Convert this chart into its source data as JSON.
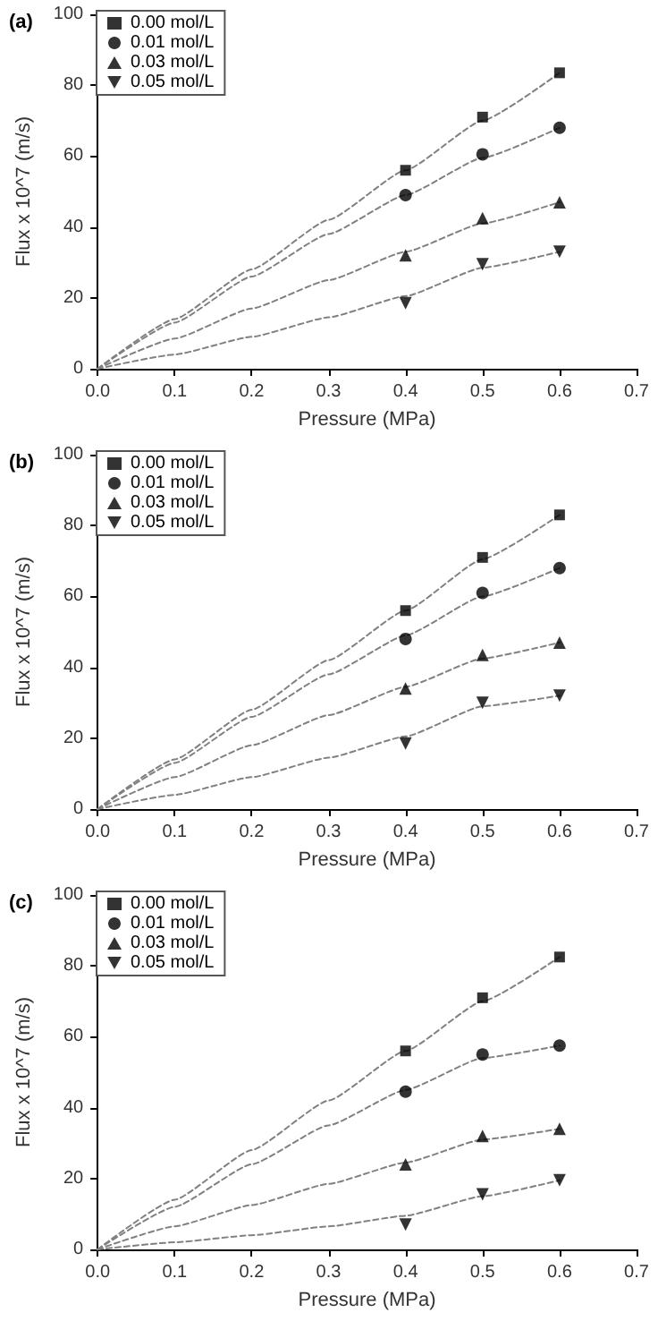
{
  "chart_data": [
    {
      "type": "scatter",
      "title": "(a)",
      "xlabel": "Pressure (MPa)",
      "ylabel": "Flux x 10^7 (m/s)",
      "xlim": [
        0,
        0.7
      ],
      "ylim": [
        0,
        100
      ],
      "xticks": [
        {
          "value": 0,
          "label": "0.0"
        },
        {
          "value": 0.1,
          "label": "0.1"
        },
        {
          "value": 0.2,
          "label": "0.2"
        },
        {
          "value": 0.3,
          "label": "0.3"
        },
        {
          "value": 0.4,
          "label": "0.4"
        },
        {
          "value": 0.5,
          "label": "0.5"
        },
        {
          "value": 0.6,
          "label": "0.6"
        },
        {
          "value": 0.7,
          "label": "0.7"
        }
      ],
      "yticks": [
        0,
        20,
        40,
        60,
        80,
        100
      ],
      "legend": "top left",
      "grid": false,
      "series": [
        {
          "name": "0.00 mol/L",
          "marker": "square",
          "color": "#000000",
          "x": [
            0.4,
            0.5,
            0.6
          ],
          "values": [
            56,
            71,
            83.5
          ]
        },
        {
          "name": "0.01 mol/L",
          "marker": "circle",
          "color": "#000000",
          "x": [
            0.4,
            0.5,
            0.6
          ],
          "values": [
            49,
            60.5,
            68
          ]
        },
        {
          "name": "0.03 mol/L",
          "marker": "triangle",
          "color": "#000000",
          "x": [
            0.4,
            0.5,
            0.6
          ],
          "values": [
            32,
            42.5,
            47
          ]
        },
        {
          "name": "0.05 mol/L",
          "marker": "triangle-down",
          "color": "#000000",
          "x": [
            0.4,
            0.5,
            0.6
          ],
          "values": [
            18.5,
            29.5,
            33
          ]
        },
        {
          "type": "line",
          "line_style": "dashed",
          "marker": "none",
          "color": "#808080",
          "x": [
            0,
            0.1,
            0.2,
            0.3,
            0.4,
            0.5,
            0.6
          ],
          "values": [
            0,
            14,
            28,
            42,
            56,
            70,
            83.5
          ]
        },
        {
          "type": "line",
          "line_style": "dashed",
          "marker": "none",
          "color": "#808080",
          "x": [
            0,
            0.1,
            0.2,
            0.3,
            0.4,
            0.5,
            0.6
          ],
          "values": [
            0,
            13,
            26,
            38,
            49,
            59.5,
            68
          ]
        },
        {
          "type": "line",
          "line_style": "dashed",
          "marker": "none",
          "color": "#808080",
          "x": [
            0,
            0.1,
            0.2,
            0.3,
            0.4,
            0.5,
            0.6
          ],
          "values": [
            0,
            8.5,
            17,
            25,
            33,
            41,
            47
          ]
        },
        {
          "type": "line",
          "line_style": "dashed",
          "marker": "none",
          "color": "#808080",
          "x": [
            0,
            0.1,
            0.2,
            0.3,
            0.4,
            0.5,
            0.6
          ],
          "values": [
            0,
            4,
            9,
            14.5,
            20.5,
            28.5,
            33
          ]
        }
      ]
    },
    {
      "type": "scatter",
      "title": "(b)",
      "xlabel": "Pressure (MPa)",
      "ylabel": "Flux x 10^7 (m/s)",
      "xlim": [
        0,
        0.7
      ],
      "ylim": [
        0,
        100
      ],
      "xticks": [
        {
          "value": 0,
          "label": "0.0"
        },
        {
          "value": 0.1,
          "label": "0.1"
        },
        {
          "value": 0.2,
          "label": "0.2"
        },
        {
          "value": 0.3,
          "label": "0.3"
        },
        {
          "value": 0.4,
          "label": "0.4"
        },
        {
          "value": 0.5,
          "label": "0.5"
        },
        {
          "value": 0.6,
          "label": "0.6"
        },
        {
          "value": 0.7,
          "label": "0.7"
        }
      ],
      "yticks": [
        0,
        20,
        40,
        60,
        80,
        100
      ],
      "legend": "top left",
      "grid": false,
      "series": [
        {
          "name": "0.00 mol/L",
          "marker": "square",
          "color": "#000000",
          "x": [
            0.4,
            0.5,
            0.6
          ],
          "values": [
            56,
            71,
            83
          ]
        },
        {
          "name": "0.01 mol/L",
          "marker": "circle",
          "color": "#000000",
          "x": [
            0.4,
            0.5,
            0.6
          ],
          "values": [
            48,
            61,
            68
          ]
        },
        {
          "name": "0.03 mol/L",
          "marker": "triangle",
          "color": "#000000",
          "x": [
            0.4,
            0.5,
            0.6
          ],
          "values": [
            34,
            43.5,
            47
          ]
        },
        {
          "name": "0.05 mol/L",
          "marker": "triangle-down",
          "color": "#000000",
          "x": [
            0.4,
            0.5,
            0.6
          ],
          "values": [
            18.5,
            30,
            32
          ]
        },
        {
          "type": "line",
          "line_style": "dashed",
          "marker": "none",
          "color": "#808080",
          "x": [
            0,
            0.1,
            0.2,
            0.3,
            0.4,
            0.5,
            0.6
          ],
          "values": [
            0,
            14,
            28,
            42,
            56,
            70.5,
            83
          ]
        },
        {
          "type": "line",
          "line_style": "dashed",
          "marker": "none",
          "color": "#808080",
          "x": [
            0,
            0.1,
            0.2,
            0.3,
            0.4,
            0.5,
            0.6
          ],
          "values": [
            0,
            13,
            26,
            38,
            49,
            60,
            68
          ]
        },
        {
          "type": "line",
          "line_style": "dashed",
          "marker": "none",
          "color": "#808080",
          "x": [
            0,
            0.1,
            0.2,
            0.3,
            0.4,
            0.5,
            0.6
          ],
          "values": [
            0,
            9,
            18,
            26.5,
            34.5,
            42.5,
            47
          ]
        },
        {
          "type": "line",
          "line_style": "dashed",
          "marker": "none",
          "color": "#808080",
          "x": [
            0,
            0.1,
            0.2,
            0.3,
            0.4,
            0.5,
            0.6
          ],
          "values": [
            0,
            4,
            9,
            14.5,
            20.5,
            29,
            32
          ]
        }
      ]
    },
    {
      "type": "scatter",
      "title": "(c)",
      "xlabel": "Pressure (MPa)",
      "ylabel": "Flux x 10^7 (m/s)",
      "xlim": [
        0,
        0.7
      ],
      "ylim": [
        0,
        100
      ],
      "xticks": [
        {
          "value": 0,
          "label": "0.0"
        },
        {
          "value": 0.1,
          "label": "0.1"
        },
        {
          "value": 0.2,
          "label": "0.2"
        },
        {
          "value": 0.3,
          "label": "0.3"
        },
        {
          "value": 0.4,
          "label": "0.4"
        },
        {
          "value": 0.5,
          "label": "0.5"
        },
        {
          "value": 0.6,
          "label": "0.6"
        },
        {
          "value": 0.7,
          "label": "0.7"
        }
      ],
      "yticks": [
        0,
        20,
        40,
        60,
        80,
        100
      ],
      "legend": "top left",
      "grid": false,
      "series": [
        {
          "name": "0.00 mol/L",
          "marker": "square",
          "color": "#000000",
          "x": [
            0.4,
            0.5,
            0.6
          ],
          "values": [
            56,
            71,
            82.5
          ]
        },
        {
          "name": "0.01 mol/L",
          "marker": "circle",
          "color": "#000000",
          "x": [
            0.4,
            0.5,
            0.6
          ],
          "values": [
            44.5,
            55,
            57.5
          ]
        },
        {
          "name": "0.03 mol/L",
          "marker": "triangle",
          "color": "#000000",
          "x": [
            0.4,
            0.5,
            0.6
          ],
          "values": [
            24,
            32,
            34
          ]
        },
        {
          "name": "0.05 mol/L",
          "marker": "triangle-down",
          "color": "#000000",
          "x": [
            0.4,
            0.5,
            0.6
          ],
          "values": [
            7,
            15.5,
            19.5
          ]
        },
        {
          "type": "line",
          "line_style": "dashed",
          "marker": "none",
          "color": "#808080",
          "x": [
            0,
            0.1,
            0.2,
            0.3,
            0.4,
            0.5,
            0.6
          ],
          "values": [
            0,
            14,
            28,
            42,
            56,
            70,
            82.5
          ]
        },
        {
          "type": "line",
          "line_style": "dashed",
          "marker": "none",
          "color": "#808080",
          "x": [
            0,
            0.1,
            0.2,
            0.3,
            0.4,
            0.5,
            0.6
          ],
          "values": [
            0,
            12,
            24,
            35,
            45,
            54,
            57.5
          ]
        },
        {
          "type": "line",
          "line_style": "dashed",
          "marker": "none",
          "color": "#808080",
          "x": [
            0,
            0.1,
            0.2,
            0.3,
            0.4,
            0.5,
            0.6
          ],
          "values": [
            0,
            6.5,
            12.5,
            18.5,
            24.5,
            31,
            34
          ]
        },
        {
          "type": "line",
          "line_style": "dashed",
          "marker": "none",
          "color": "#808080",
          "x": [
            0,
            0.1,
            0.2,
            0.3,
            0.4,
            0.5,
            0.6
          ],
          "values": [
            0,
            2,
            4,
            6.5,
            9.5,
            15,
            19.5
          ]
        }
      ]
    }
  ]
}
